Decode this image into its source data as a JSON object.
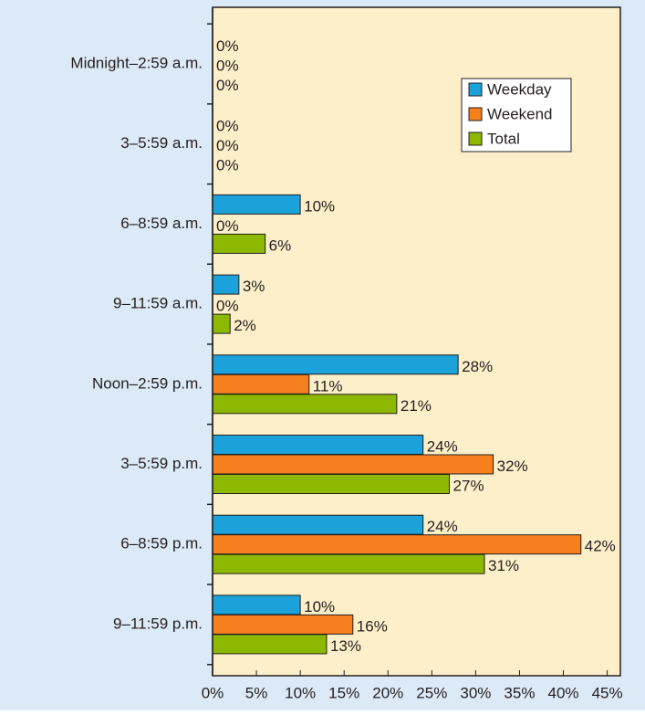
{
  "chart_data": {
    "type": "bar",
    "orientation": "horizontal",
    "categories": [
      "Midnight–2:59 a.m.",
      "3–5:59 a.m.",
      "6–8:59 a.m.",
      "9–11:59 a.m.",
      "Noon–2:59 p.m.",
      "3–5:59 p.m.",
      "6–8:59 p.m.",
      "9–11:59 p.m."
    ],
    "series": [
      {
        "name": "Weekday",
        "color": "#1ba2db",
        "values": [
          0,
          0,
          10,
          3,
          28,
          24,
          24,
          10
        ],
        "value_labels": [
          "0%",
          "0%",
          "10%",
          "3%",
          "28%",
          "24%",
          "24%",
          "10%"
        ]
      },
      {
        "name": "Weekend",
        "color": "#f7801e",
        "values": [
          0,
          0,
          0,
          0,
          11,
          32,
          42,
          16
        ],
        "value_labels": [
          "0%",
          "0%",
          "0%",
          "0%",
          "11%",
          "32%",
          "42%",
          "16%"
        ]
      },
      {
        "name": "Total",
        "color": "#8cb800",
        "values": [
          0,
          0,
          6,
          2,
          21,
          27,
          31,
          13
        ],
        "value_labels": [
          "0%",
          "0%",
          "6%",
          "2%",
          "21%",
          "27%",
          "31%",
          "13%"
        ]
      }
    ],
    "xlim": [
      0,
      46.5
    ],
    "xticks": [
      {
        "value": 0,
        "label": "0%"
      },
      {
        "value": 5,
        "label": "5%"
      },
      {
        "value": 10,
        "label": "10%"
      },
      {
        "value": 15,
        "label": "15%"
      },
      {
        "value": 20,
        "label": "20%"
      },
      {
        "value": 25,
        "label": "25%"
      },
      {
        "value": 30,
        "label": "30%"
      },
      {
        "value": 35,
        "label": "35%"
      },
      {
        "value": 40,
        "label": "40%"
      },
      {
        "value": 45,
        "label": "45%"
      }
    ],
    "legend": "upper right"
  }
}
